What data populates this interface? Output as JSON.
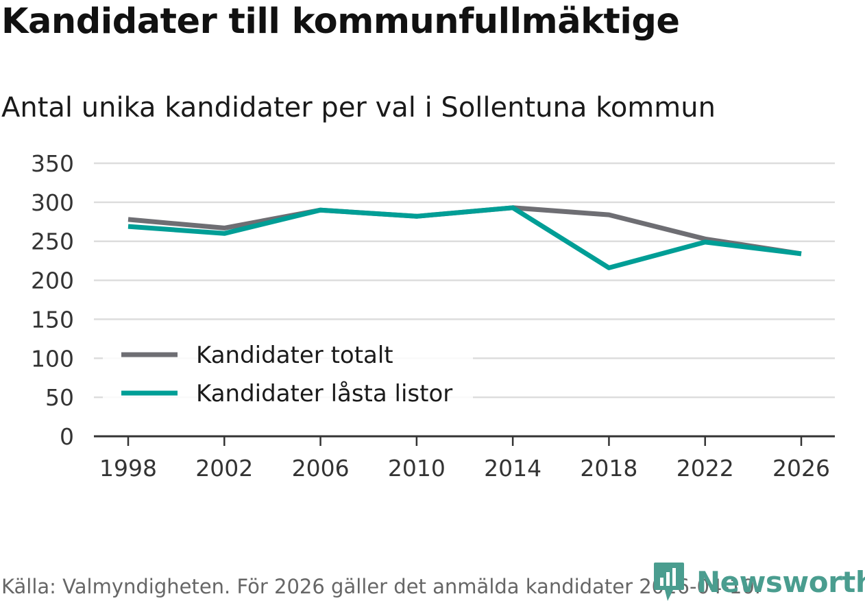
{
  "title": "Kandidater till kommunfullmäktige",
  "subtitle": "Antal unika kandidater per val i Sollentuna kommun",
  "source": "Källa: Valmyndigheten. För 2026 gäller det anmälda kandidater 2026-04-10.",
  "brand": "Newsworthy",
  "colors": {
    "total": "#6e6e73",
    "locked": "#009e96",
    "grid": "#dddddd",
    "axis": "#333333",
    "brand": "#4a9d8f"
  },
  "chart_data": {
    "type": "line",
    "title": "Kandidater till kommunfullmäktige",
    "subtitle": "Antal unika kandidater per val i Sollentuna kommun",
    "xlabel": "",
    "ylabel": "",
    "x": [
      "1998",
      "2002",
      "2006",
      "2010",
      "2014",
      "2018",
      "2022",
      "2026"
    ],
    "ylim": [
      0,
      350
    ],
    "yticks": [
      0,
      50,
      100,
      150,
      200,
      250,
      300,
      350
    ],
    "grid": true,
    "legend_position": "lower-left",
    "series": [
      {
        "name": "Kandidater totalt",
        "color": "#6e6e73",
        "values": [
          278,
          267,
          290,
          282,
          293,
          284,
          253,
          234
        ]
      },
      {
        "name": "Kandidater låsta listor",
        "color": "#009e96",
        "values": [
          269,
          260,
          290,
          282,
          293,
          216,
          249,
          234
        ]
      }
    ]
  }
}
